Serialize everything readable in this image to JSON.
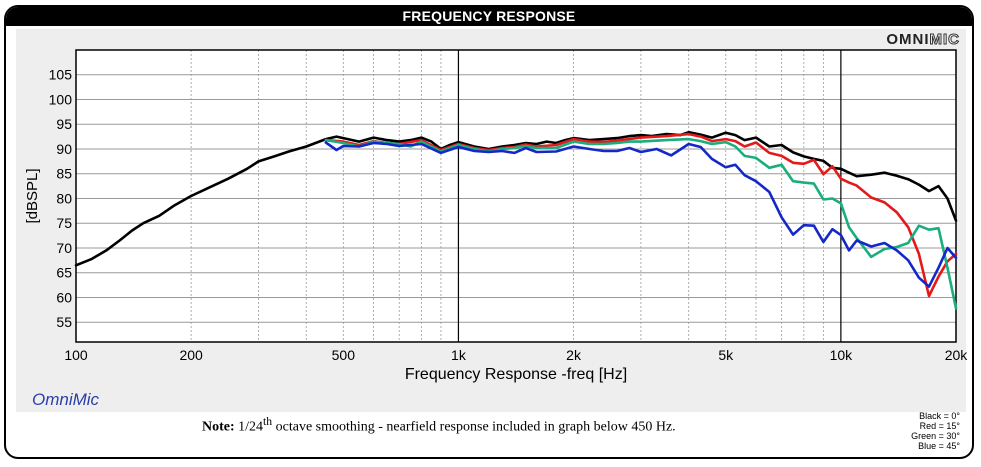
{
  "header": {
    "title": "FREQUENCY RESPONSE",
    "brand_part1": "OMNI",
    "brand_part2": "MIC"
  },
  "footer": {
    "app_label": "OmniMic",
    "note_prefix": "Note:",
    "note_num": "1/24",
    "note_sup": "th",
    "note_rest": " octave smoothing - nearfield response included in graph below 450 Hz.",
    "legend_lines": [
      "Black = 0°",
      "Red = 15°",
      "Green = 30°",
      "Blue = 45°"
    ]
  },
  "chart_data": {
    "type": "line",
    "title": "FREQUENCY RESPONSE",
    "xlabel": "Frequency Response -freq [Hz]",
    "ylabel": "[dBSPL]",
    "x_scale": "log",
    "xlim": [
      100,
      20000
    ],
    "ylim": [
      51,
      110
    ],
    "x_ticks": [
      100,
      200,
      500,
      1000,
      2000,
      5000,
      10000,
      20000
    ],
    "x_tick_labels": [
      "100",
      "200",
      "500",
      "1k",
      "2k",
      "5k",
      "10k",
      "20k"
    ],
    "y_ticks": [
      55,
      60,
      65,
      70,
      75,
      80,
      85,
      90,
      95,
      100,
      105
    ],
    "grid": true,
    "series": [
      {
        "name": "Black = 0°",
        "color": "#000000",
        "points": [
          [
            100,
            66.5
          ],
          [
            110,
            67.8
          ],
          [
            120,
            69.5
          ],
          [
            130,
            71.5
          ],
          [
            140,
            73.5
          ],
          [
            150,
            75
          ],
          [
            165,
            76.5
          ],
          [
            180,
            78.5
          ],
          [
            200,
            80.5
          ],
          [
            220,
            82
          ],
          [
            250,
            84
          ],
          [
            280,
            86
          ],
          [
            300,
            87.5
          ],
          [
            330,
            88.5
          ],
          [
            360,
            89.5
          ],
          [
            400,
            90.5
          ],
          [
            450,
            92
          ],
          [
            480,
            92.5
          ],
          [
            500,
            92.2
          ],
          [
            550,
            91.5
          ],
          [
            600,
            92.3
          ],
          [
            650,
            91.8
          ],
          [
            700,
            91.5
          ],
          [
            750,
            91.8
          ],
          [
            800,
            92.3
          ],
          [
            850,
            91.5
          ],
          [
            900,
            90
          ],
          [
            950,
            90.8
          ],
          [
            1000,
            91.4
          ],
          [
            1100,
            90.5
          ],
          [
            1200,
            90
          ],
          [
            1300,
            90.5
          ],
          [
            1400,
            90.8
          ],
          [
            1500,
            91.2
          ],
          [
            1600,
            91
          ],
          [
            1700,
            91.5
          ],
          [
            1800,
            91.2
          ],
          [
            1900,
            91.8
          ],
          [
            2000,
            92.2
          ],
          [
            2200,
            91.8
          ],
          [
            2400,
            92
          ],
          [
            2600,
            92.2
          ],
          [
            2800,
            92.6
          ],
          [
            3000,
            92.8
          ],
          [
            3200,
            92.6
          ],
          [
            3500,
            93
          ],
          [
            3800,
            92.8
          ],
          [
            4000,
            93.4
          ],
          [
            4300,
            92.9
          ],
          [
            4600,
            92.3
          ],
          [
            5000,
            93.3
          ],
          [
            5300,
            92.8
          ],
          [
            5600,
            91.8
          ],
          [
            6000,
            92.3
          ],
          [
            6500,
            90.5
          ],
          [
            7000,
            90.8
          ],
          [
            7500,
            89.3
          ],
          [
            8000,
            88.5
          ],
          [
            8500,
            88
          ],
          [
            9000,
            87.6
          ],
          [
            9500,
            86.2
          ],
          [
            10000,
            86
          ],
          [
            10500,
            85.2
          ],
          [
            11000,
            84.5
          ],
          [
            12000,
            84.8
          ],
          [
            13000,
            85.2
          ],
          [
            14000,
            84.6
          ],
          [
            15000,
            83.9
          ],
          [
            16000,
            82.8
          ],
          [
            17000,
            81.5
          ],
          [
            18000,
            82.5
          ],
          [
            19000,
            80
          ],
          [
            20000,
            75.5
          ]
        ]
      },
      {
        "name": "Red = 15°",
        "color": "#e31a1a",
        "points": [
          [
            450,
            91.8
          ],
          [
            500,
            91.5
          ],
          [
            550,
            90.8
          ],
          [
            600,
            91.6
          ],
          [
            650,
            91.2
          ],
          [
            700,
            91
          ],
          [
            800,
            91.8
          ],
          [
            900,
            89.8
          ],
          [
            1000,
            91
          ],
          [
            1100,
            90.2
          ],
          [
            1200,
            89.8
          ],
          [
            1300,
            90.2
          ],
          [
            1400,
            90.4
          ],
          [
            1500,
            90.9
          ],
          [
            1600,
            90.5
          ],
          [
            1800,
            90.8
          ],
          [
            2000,
            92
          ],
          [
            2200,
            91.5
          ],
          [
            2400,
            91.4
          ],
          [
            2600,
            91.7
          ],
          [
            2800,
            92
          ],
          [
            3000,
            92.3
          ],
          [
            3500,
            92.6
          ],
          [
            4000,
            93
          ],
          [
            4300,
            92.5
          ],
          [
            4600,
            91.6
          ],
          [
            5000,
            92
          ],
          [
            5300,
            91.6
          ],
          [
            5600,
            90.5
          ],
          [
            6000,
            91.3
          ],
          [
            6500,
            89.2
          ],
          [
            7000,
            88.6
          ],
          [
            7500,
            87.2
          ],
          [
            8000,
            87
          ],
          [
            8500,
            87.8
          ],
          [
            9000,
            84.9
          ],
          [
            9500,
            86.5
          ],
          [
            10000,
            84
          ],
          [
            10500,
            83.2
          ],
          [
            11000,
            82.6
          ],
          [
            12000,
            80.2
          ],
          [
            13000,
            79.2
          ],
          [
            14000,
            77.2
          ],
          [
            15000,
            74.2
          ],
          [
            16000,
            68.8
          ],
          [
            17000,
            60.3
          ],
          [
            18000,
            64.2
          ],
          [
            19000,
            67.3
          ],
          [
            20000,
            68.8
          ]
        ]
      },
      {
        "name": "Green = 30°",
        "color": "#1aae7e",
        "points": [
          [
            450,
            91.8
          ],
          [
            500,
            91.2
          ],
          [
            550,
            90.5
          ],
          [
            600,
            91.5
          ],
          [
            650,
            91.2
          ],
          [
            700,
            91
          ],
          [
            750,
            90.5
          ],
          [
            800,
            91.5
          ],
          [
            900,
            89.5
          ],
          [
            1000,
            90.8
          ],
          [
            1100,
            90
          ],
          [
            1200,
            89.5
          ],
          [
            1300,
            90
          ],
          [
            1400,
            90.2
          ],
          [
            1500,
            90.6
          ],
          [
            1600,
            90.2
          ],
          [
            1800,
            90.2
          ],
          [
            2000,
            91.5
          ],
          [
            2200,
            91
          ],
          [
            2400,
            91
          ],
          [
            2600,
            91.2
          ],
          [
            2800,
            91.5
          ],
          [
            3000,
            91.5
          ],
          [
            3500,
            91.8
          ],
          [
            4000,
            92
          ],
          [
            4300,
            91.6
          ],
          [
            4600,
            91
          ],
          [
            5000,
            91.4
          ],
          [
            5300,
            90.5
          ],
          [
            5600,
            88.6
          ],
          [
            6000,
            88.2
          ],
          [
            6500,
            86.2
          ],
          [
            7000,
            86.8
          ],
          [
            7500,
            83.5
          ],
          [
            8000,
            83.2
          ],
          [
            8500,
            83
          ],
          [
            9000,
            79.8
          ],
          [
            9500,
            80
          ],
          [
            10000,
            79
          ],
          [
            10500,
            74.2
          ],
          [
            11000,
            72
          ],
          [
            12000,
            68.2
          ],
          [
            13000,
            69.8
          ],
          [
            14000,
            70.2
          ],
          [
            15000,
            71
          ],
          [
            16000,
            74.5
          ],
          [
            17000,
            73.7
          ],
          [
            18000,
            74
          ],
          [
            19000,
            66
          ],
          [
            20000,
            57.8
          ]
        ]
      },
      {
        "name": "Blue = 45°",
        "color": "#1428c8",
        "points": [
          [
            450,
            91.3
          ],
          [
            480,
            89.8
          ],
          [
            500,
            90.6
          ],
          [
            550,
            90.5
          ],
          [
            600,
            91.2
          ],
          [
            650,
            91
          ],
          [
            700,
            90.6
          ],
          [
            800,
            91
          ],
          [
            900,
            89.2
          ],
          [
            1000,
            90.4
          ],
          [
            1100,
            89.6
          ],
          [
            1200,
            89.4
          ],
          [
            1300,
            89.6
          ],
          [
            1400,
            89.2
          ],
          [
            1500,
            90.2
          ],
          [
            1600,
            89.4
          ],
          [
            1800,
            89.5
          ],
          [
            2000,
            90.5
          ],
          [
            2200,
            90
          ],
          [
            2400,
            89.6
          ],
          [
            2600,
            89.6
          ],
          [
            2800,
            90.2
          ],
          [
            3000,
            89.4
          ],
          [
            3300,
            90
          ],
          [
            3600,
            88.7
          ],
          [
            4000,
            91
          ],
          [
            4300,
            90.4
          ],
          [
            4600,
            88
          ],
          [
            5000,
            86.3
          ],
          [
            5300,
            86.8
          ],
          [
            5600,
            84.7
          ],
          [
            6000,
            83.5
          ],
          [
            6500,
            81.3
          ],
          [
            7000,
            76.2
          ],
          [
            7500,
            72.7
          ],
          [
            8000,
            74.6
          ],
          [
            8500,
            74.5
          ],
          [
            9000,
            71.2
          ],
          [
            9500,
            73.8
          ],
          [
            10000,
            72.6
          ],
          [
            10500,
            69.5
          ],
          [
            11000,
            71.5
          ],
          [
            12000,
            70.3
          ],
          [
            13000,
            71
          ],
          [
            14000,
            69.5
          ],
          [
            15000,
            67.5
          ],
          [
            16000,
            64
          ],
          [
            17000,
            62.2
          ],
          [
            18000,
            66
          ],
          [
            19000,
            70
          ],
          [
            20000,
            68
          ]
        ]
      }
    ]
  }
}
